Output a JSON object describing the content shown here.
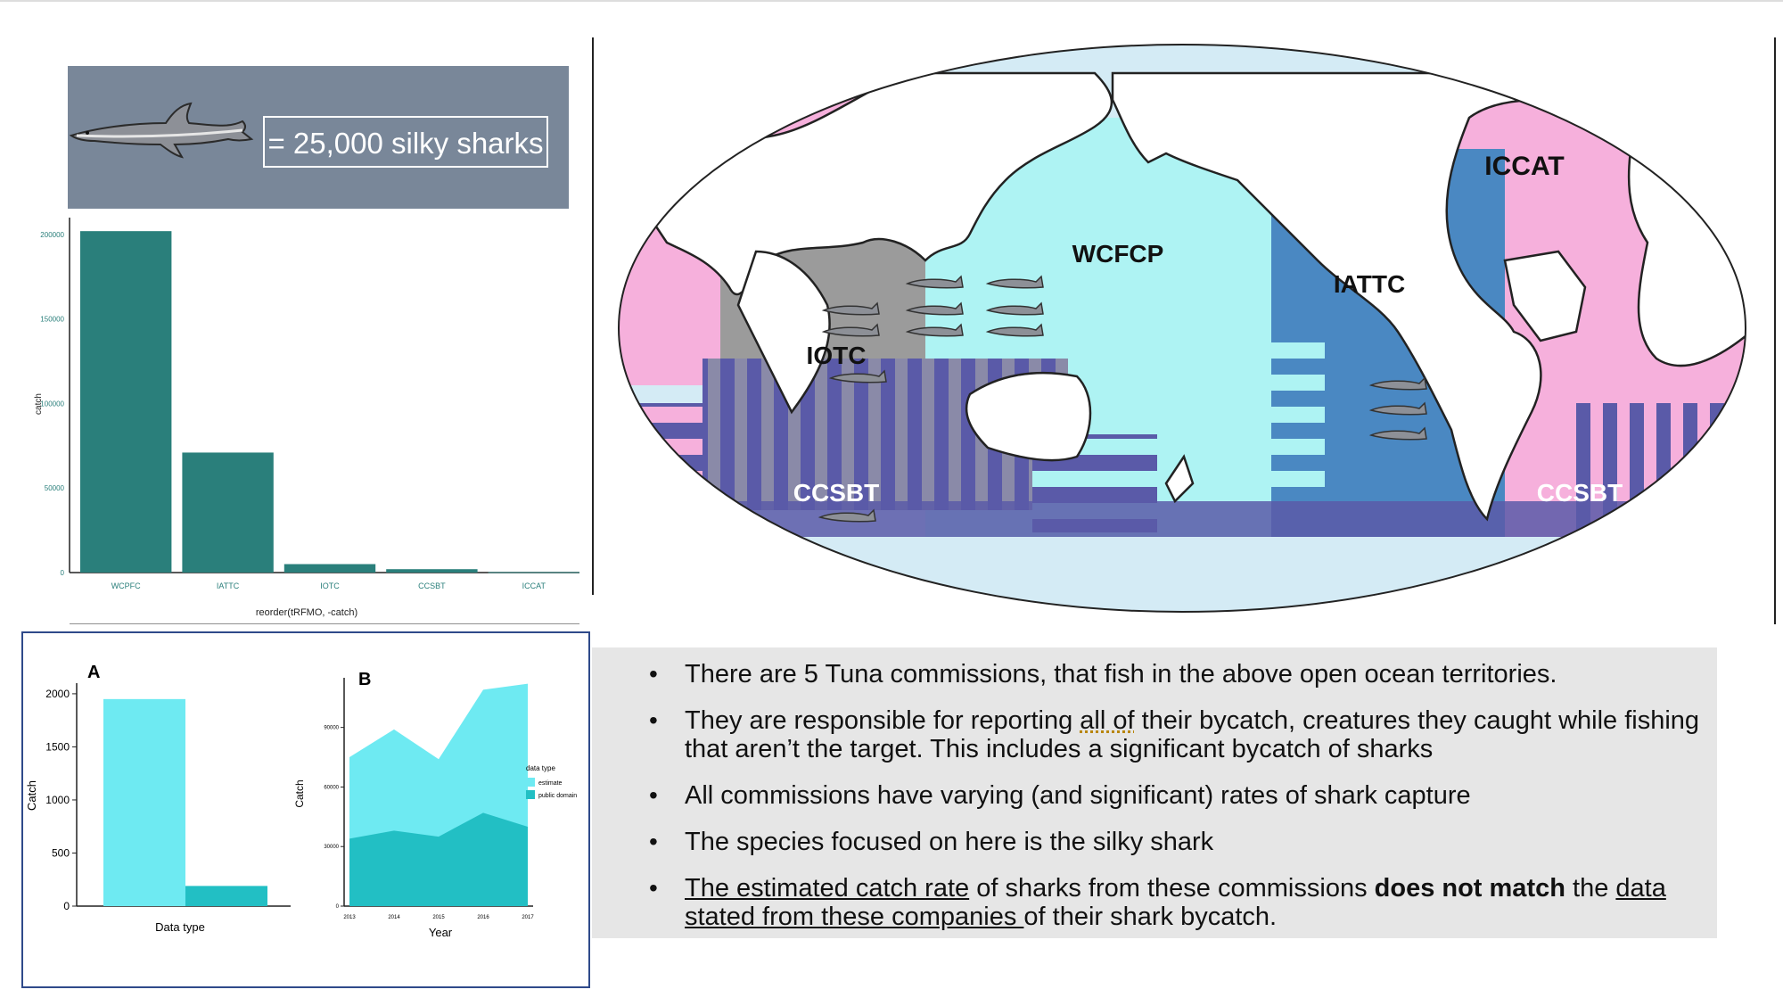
{
  "banner": {
    "legend_text": "= 25,000 silky sharks",
    "icon": "shark-icon"
  },
  "map": {
    "labels": {
      "iccat": "ICCAT",
      "wcfcp": "WCFCP",
      "iattc": "IATTC",
      "iotc": "IOTC",
      "ccsbt_west": "CCSBT",
      "ccsbt_east": "CCSBT"
    },
    "colors": {
      "ocean": "#d4ebf5",
      "iccat": "#f6b0dc",
      "wcfcp": "#aef3f3",
      "iattc": "#4a88c2",
      "iotc": "#9b9b9b",
      "ccsbt": "#5a5aa8",
      "land": "#ffffff"
    },
    "shark_counts": {
      "wcfcp": 8,
      "iattc": 3,
      "iotc": 1,
      "ccsbt": 1
    }
  },
  "chart_data": [
    {
      "type": "bar",
      "categories": [
        "WCPFC",
        "IATTC",
        "IOTC",
        "CCSBT",
        "ICCAT"
      ],
      "values": [
        202000,
        71000,
        5000,
        2000,
        300
      ],
      "title": "",
      "xlabel": "reorder(tRFMO, -catch)",
      "ylabel": "catch",
      "ylim": [
        0,
        210000
      ],
      "yticks": [
        0,
        50000,
        100000,
        150000,
        200000
      ],
      "color": "#2a7f7b"
    },
    {
      "type": "bar",
      "panel_label": "A",
      "categories": [
        "",
        ""
      ],
      "values": [
        1950,
        190
      ],
      "colors": [
        "#6eeaf2",
        "#22bfc4"
      ],
      "xlabel": "Data type",
      "ylabel": "Catch",
      "ylim": [
        0,
        2100
      ],
      "yticks": [
        0,
        500,
        1000,
        1500,
        2000
      ]
    },
    {
      "type": "area",
      "panel_label": "B",
      "x": [
        2013,
        2014,
        2015,
        2016,
        2017
      ],
      "series": [
        {
          "name": "estimate",
          "values": [
            75000,
            89000,
            74000,
            109000,
            112000
          ],
          "color": "#6eeaf2"
        },
        {
          "name": "public domain",
          "values": [
            34000,
            38000,
            35000,
            47000,
            40000
          ],
          "color": "#22bfc4"
        }
      ],
      "xlabel": "Year",
      "ylabel": "Catch",
      "ylim": [
        0,
        115000
      ],
      "yticks": [
        0,
        30000,
        60000,
        90000
      ],
      "legend_title": "data type",
      "legend_position": "right"
    }
  ],
  "bullets": [
    {
      "parts": [
        {
          "text": "There are 5 Tuna commissions, that fish in the above open ocean territories."
        }
      ]
    },
    {
      "parts": [
        {
          "text": "They are responsible for reporting "
        },
        {
          "text": "all of",
          "style": "dotted"
        },
        {
          "text": " their bycatch, creatures they caught while fishing that aren’t the target. This includes a significant bycatch of sharks"
        }
      ]
    },
    {
      "parts": [
        {
          "text": "All commissions have varying (and significant) rates of shark capture"
        }
      ]
    },
    {
      "parts": [
        {
          "text": "The species focused on here is the silky shark"
        }
      ]
    },
    {
      "parts": [
        {
          "text": "The estimated catch rate",
          "style": "u"
        },
        {
          "text": " of sharks from these commissions "
        },
        {
          "text": "does not match",
          "style": "b"
        },
        {
          "text": " the "
        },
        {
          "text": "data stated from these companies ",
          "style": "u"
        },
        {
          "text": "of their shark bycatch."
        }
      ]
    }
  ]
}
